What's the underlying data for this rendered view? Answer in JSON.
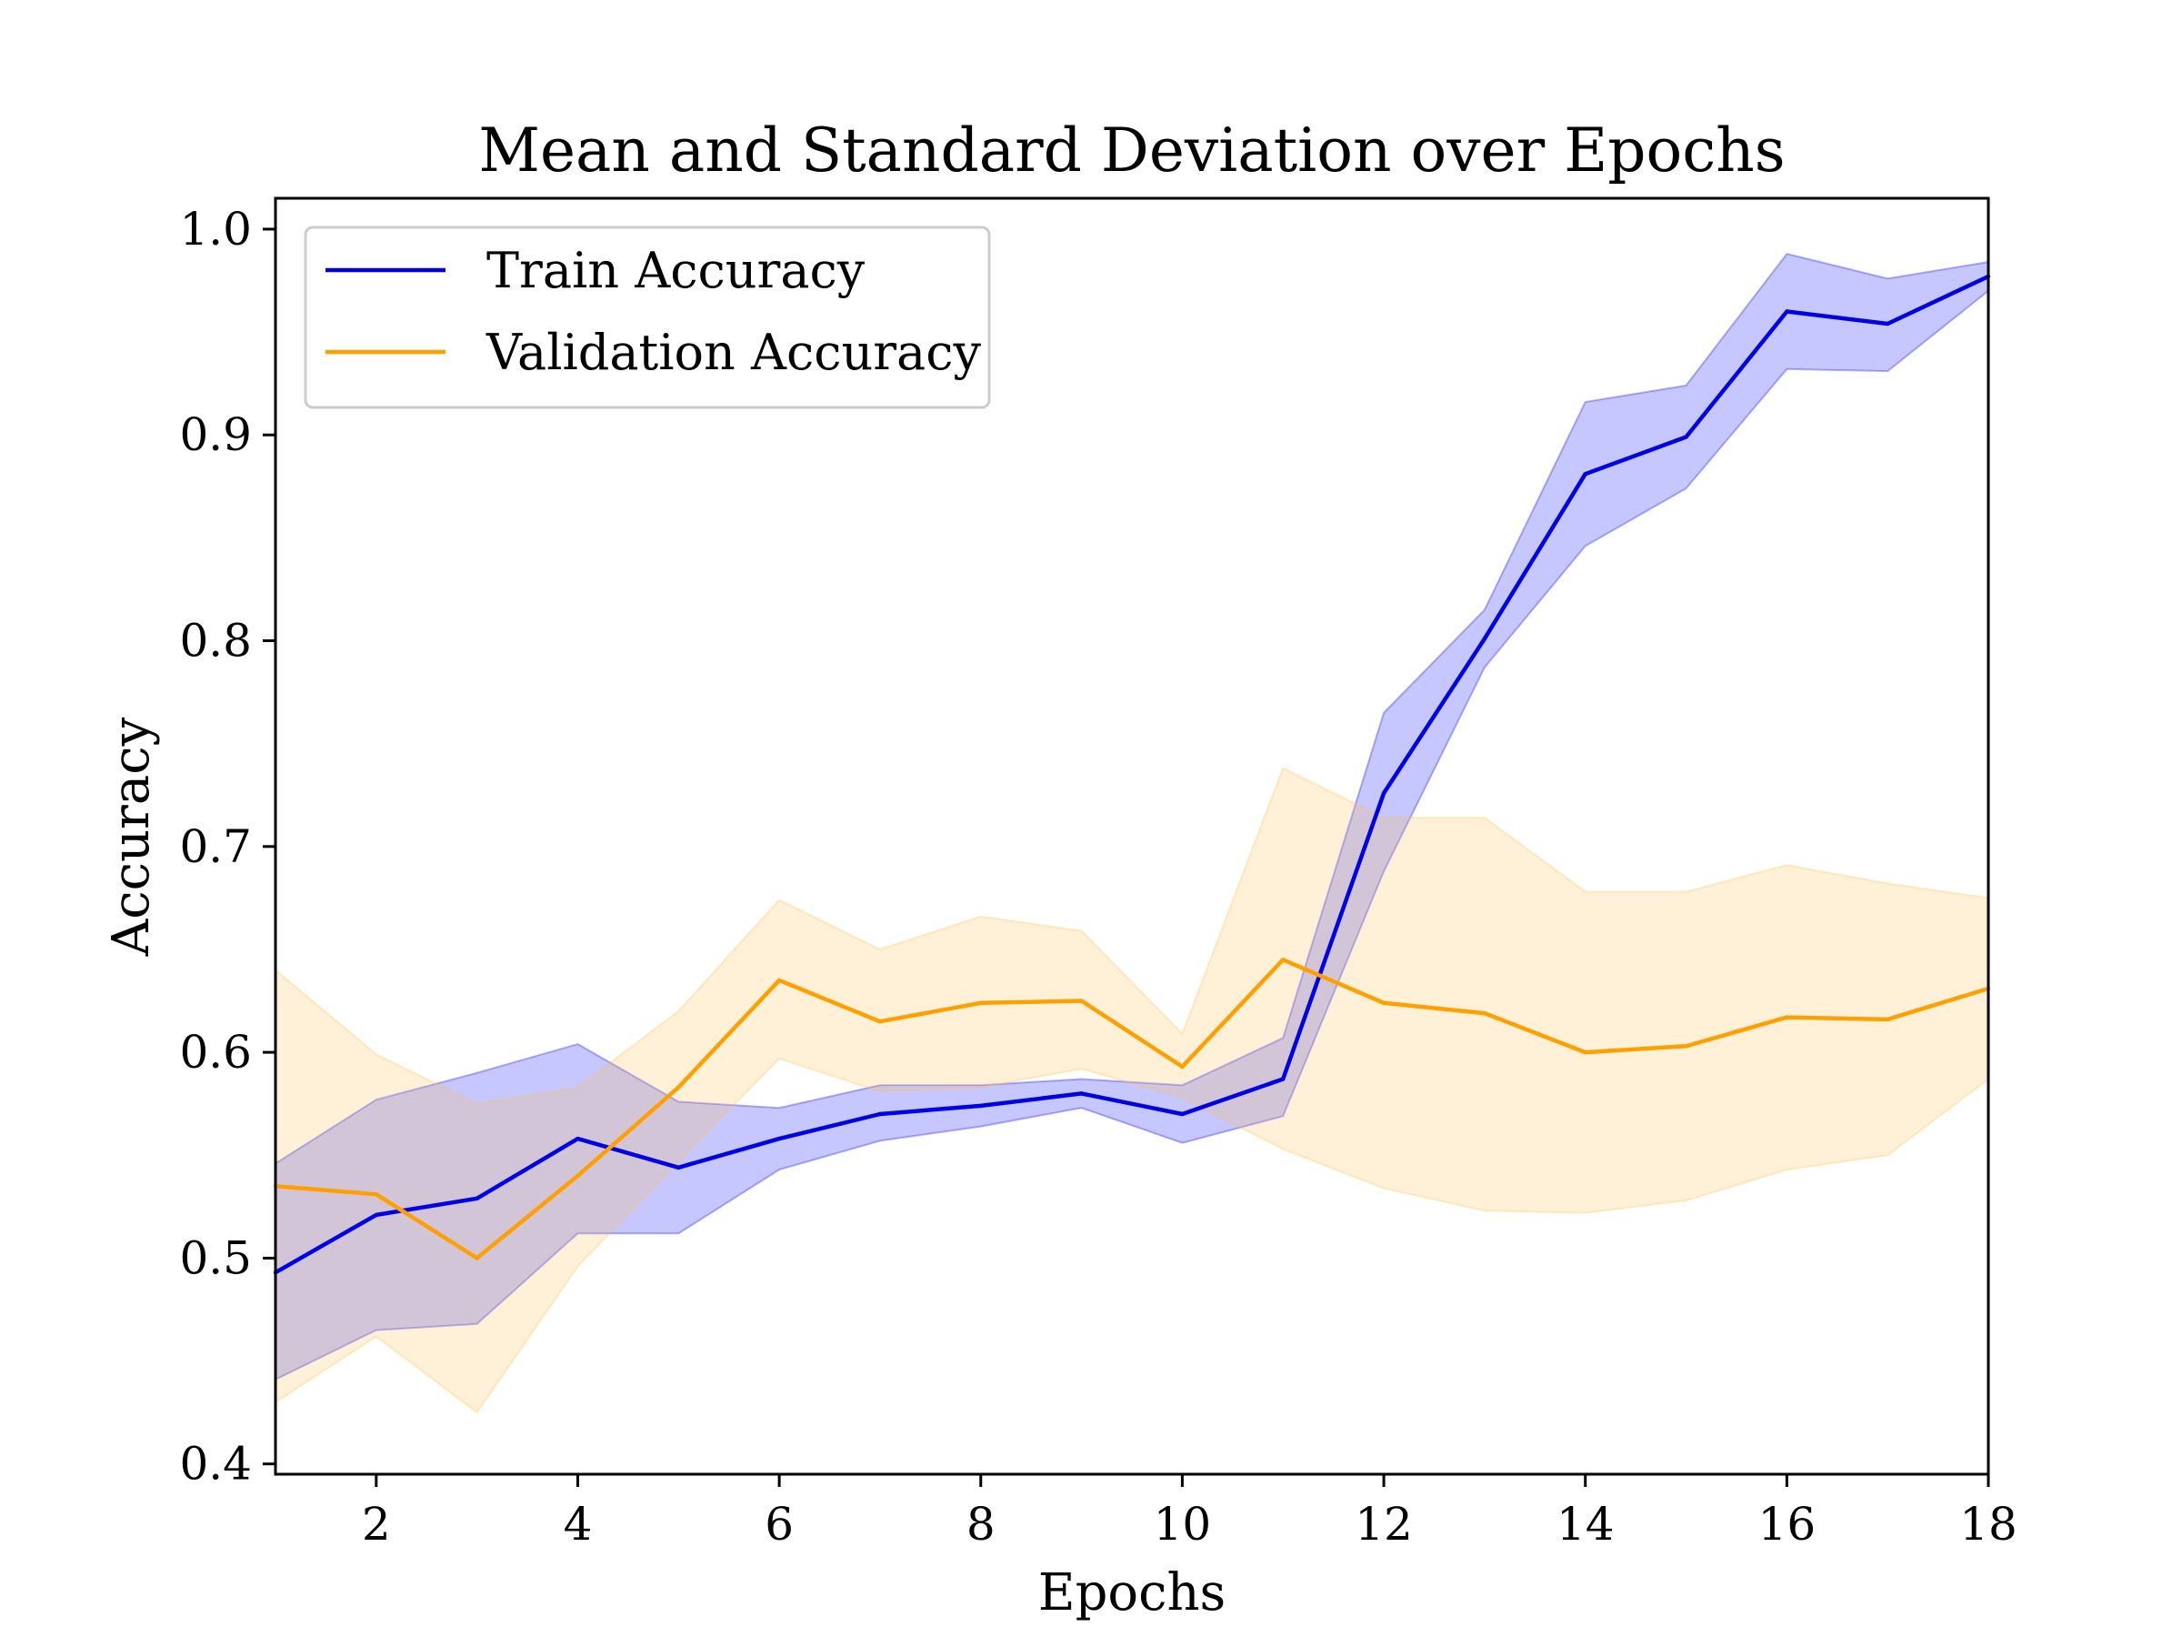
{
  "chart_data": {
    "type": "line",
    "title": "Mean and Standard Deviation over Epochs",
    "xlabel": "Epochs",
    "ylabel": "Accuracy",
    "xlim": [
      1,
      18
    ],
    "ylim": [
      0.395,
      1.015
    ],
    "xticks": [
      2,
      4,
      6,
      8,
      10,
      12,
      14,
      16,
      18
    ],
    "xtick_labels": [
      "2",
      "4",
      "6",
      "8",
      "10",
      "12",
      "14",
      "16",
      "18"
    ],
    "yticks": [
      0.4,
      0.5,
      0.6,
      0.7,
      0.8,
      0.9,
      1.0
    ],
    "ytick_labels": [
      "0.4",
      "0.5",
      "0.6",
      "0.7",
      "0.8",
      "0.9",
      "1.0"
    ],
    "grid": false,
    "legend_position": "top-left",
    "x": [
      1,
      2,
      3,
      4,
      5,
      6,
      7,
      8,
      9,
      10,
      11,
      12,
      13,
      14,
      15,
      16,
      17,
      18
    ],
    "series": [
      {
        "name": "Train Accuracy",
        "color": "#0000e6",
        "band_color": "#0000ff",
        "mean": [
          0.493,
          0.521,
          0.529,
          0.558,
          0.544,
          0.558,
          0.57,
          0.574,
          0.58,
          0.57,
          0.587,
          0.726,
          0.801,
          0.881,
          0.899,
          0.96,
          0.954,
          0.977
        ],
        "lower": [
          0.441,
          0.465,
          0.468,
          0.512,
          0.512,
          0.543,
          0.557,
          0.564,
          0.573,
          0.556,
          0.569,
          0.688,
          0.787,
          0.846,
          0.874,
          0.932,
          0.931,
          0.97
        ],
        "upper": [
          0.546,
          0.577,
          0.59,
          0.604,
          0.576,
          0.573,
          0.584,
          0.584,
          0.587,
          0.584,
          0.607,
          0.765,
          0.815,
          0.916,
          0.924,
          0.988,
          0.976,
          0.984
        ]
      },
      {
        "name": "Validation Accuracy",
        "color": "#ff9f00",
        "band_color": "#ffc04d",
        "mean": [
          0.535,
          0.531,
          0.5,
          0.54,
          0.583,
          0.635,
          0.615,
          0.624,
          0.625,
          0.593,
          0.645,
          0.624,
          0.619,
          0.6,
          0.603,
          0.617,
          0.616,
          0.631
        ],
        "lower": [
          0.43,
          0.462,
          0.425,
          0.496,
          0.547,
          0.597,
          0.581,
          0.583,
          0.592,
          0.578,
          0.553,
          0.534,
          0.523,
          0.522,
          0.528,
          0.543,
          0.55,
          0.587
        ],
        "upper": [
          0.64,
          0.599,
          0.575,
          0.583,
          0.62,
          0.674,
          0.65,
          0.666,
          0.659,
          0.609,
          0.738,
          0.714,
          0.714,
          0.678,
          0.678,
          0.691,
          0.682,
          0.675
        ]
      }
    ]
  }
}
